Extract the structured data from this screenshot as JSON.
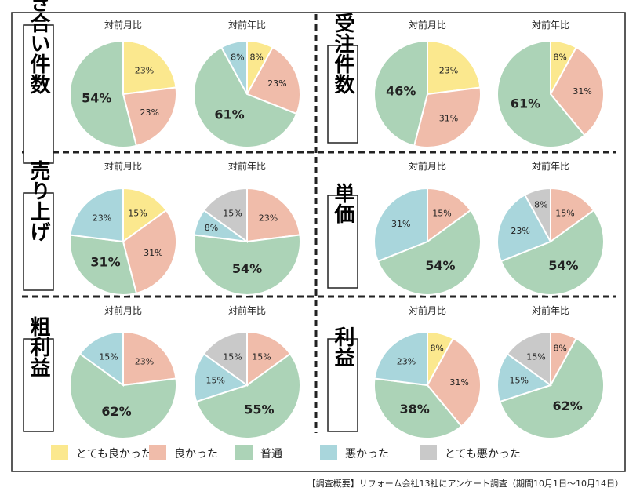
{
  "colors": {
    "とても良かった": "#fbe88e",
    "良かった": "#f0bcaa",
    "普通": "#acd3b7",
    "悪かった": "#a9d6dc",
    "とても悪かった": "#c9c9c9"
  },
  "legend": [
    "とても良かった",
    "良かった",
    "普通",
    "悪かった",
    "とても悪かった"
  ],
  "footnote": "【調査概要】リフォーム会社13社にアンケート調査（期間10月1日〜10月14日）",
  "chart_data": [
    {
      "type": "pie",
      "category": "引き合い件数",
      "charts": [
        {
          "title": "対前月比",
          "slices": [
            {
              "name": "とても良かった",
              "value": 23
            },
            {
              "name": "良かった",
              "value": 23
            },
            {
              "name": "普通",
              "value": 54
            }
          ]
        },
        {
          "title": "対前年比",
          "slices": [
            {
              "name": "とても良かった",
              "value": 8
            },
            {
              "name": "良かった",
              "value": 23
            },
            {
              "name": "普通",
              "value": 61
            },
            {
              "name": "悪かった",
              "value": 8
            }
          ]
        }
      ]
    },
    {
      "type": "pie",
      "category": "受注件数",
      "charts": [
        {
          "title": "対前月比",
          "slices": [
            {
              "name": "とても良かった",
              "value": 23
            },
            {
              "name": "良かった",
              "value": 31
            },
            {
              "name": "普通",
              "value": 46
            }
          ]
        },
        {
          "title": "対前年比",
          "slices": [
            {
              "name": "とても良かった",
              "value": 8
            },
            {
              "name": "良かった",
              "value": 31
            },
            {
              "name": "普通",
              "value": 61
            }
          ]
        }
      ]
    },
    {
      "type": "pie",
      "category": "売り上げ",
      "charts": [
        {
          "title": "対前月比",
          "slices": [
            {
              "name": "とても良かった",
              "value": 15
            },
            {
              "name": "良かった",
              "value": 31
            },
            {
              "name": "普通",
              "value": 31
            },
            {
              "name": "悪かった",
              "value": 23
            }
          ]
        },
        {
          "title": "対前年比",
          "slices": [
            {
              "name": "良かった",
              "value": 23
            },
            {
              "name": "普通",
              "value": 54
            },
            {
              "name": "悪かった",
              "value": 8
            },
            {
              "name": "とても悪かった",
              "value": 15
            }
          ]
        }
      ]
    },
    {
      "type": "pie",
      "category": "単価",
      "charts": [
        {
          "title": "対前月比",
          "slices": [
            {
              "name": "良かった",
              "value": 15
            },
            {
              "name": "普通",
              "value": 54
            },
            {
              "name": "悪かった",
              "value": 31
            }
          ]
        },
        {
          "title": "対前年比",
          "slices": [
            {
              "name": "良かった",
              "value": 15
            },
            {
              "name": "普通",
              "value": 54
            },
            {
              "name": "悪かった",
              "value": 23
            },
            {
              "name": "とても悪かった",
              "value": 8
            }
          ]
        }
      ]
    },
    {
      "type": "pie",
      "category": "粗利益",
      "charts": [
        {
          "title": "対前月比",
          "slices": [
            {
              "name": "良かった",
              "value": 23
            },
            {
              "name": "普通",
              "value": 62
            },
            {
              "name": "悪かった",
              "value": 15
            }
          ]
        },
        {
          "title": "対前年比",
          "slices": [
            {
              "name": "良かった",
              "value": 15
            },
            {
              "name": "普通",
              "value": 55
            },
            {
              "name": "悪かった",
              "value": 15
            },
            {
              "name": "とても悪かった",
              "value": 15
            }
          ]
        }
      ]
    },
    {
      "type": "pie",
      "category": "利益",
      "charts": [
        {
          "title": "対前月比",
          "slices": [
            {
              "name": "とても良かった",
              "value": 8
            },
            {
              "name": "良かった",
              "value": 31
            },
            {
              "name": "普通",
              "value": 38
            },
            {
              "name": "悪かった",
              "value": 23
            }
          ]
        },
        {
          "title": "対前年比",
          "slices": [
            {
              "name": "良かった",
              "value": 8
            },
            {
              "name": "普通",
              "value": 62
            },
            {
              "name": "悪かった",
              "value": 15
            },
            {
              "name": "とても悪かった",
              "value": 15
            }
          ]
        }
      ]
    }
  ]
}
